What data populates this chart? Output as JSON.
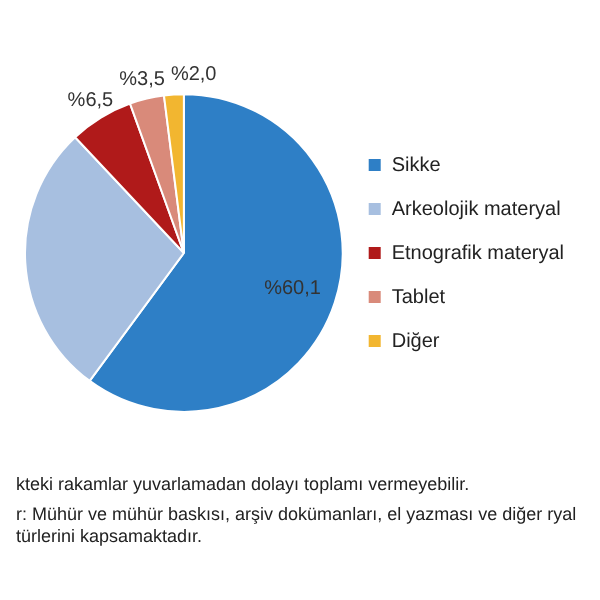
{
  "chart_data": {
    "type": "pie",
    "categories": [
      "Sikke",
      "Arkeolojik materyal",
      "Etnografik materyal",
      "Tablet",
      "Diğer"
    ],
    "values": [
      60.1,
      27.9,
      6.5,
      3.5,
      2.0
    ],
    "colors": [
      "#2e7fc6",
      "#a7bfe0",
      "#b01a1a",
      "#d98a7a",
      "#f2b630"
    ],
    "value_labels": [
      "%60,1",
      null,
      "%6,5",
      "%3,5",
      "%2,0"
    ],
    "legend": "right",
    "annotations": [
      "kteki rakamlar yuvarlamadan dolayı toplamı vermeyebilir.",
      "r: Mühür ve mühür baskısı, arşiv dokümanları, el yazması ve diğer ryal türlerini kapsamaktadır."
    ]
  }
}
